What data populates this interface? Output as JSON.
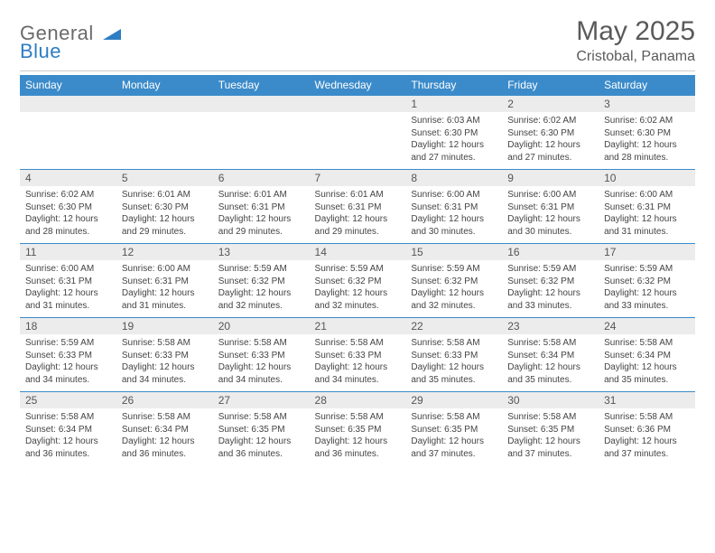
{
  "brand": {
    "line1": "General",
    "line2": "Blue"
  },
  "title": "May 2025",
  "location": "Cristobal, Panama",
  "colors": {
    "header_bg": "#3b8bca",
    "header_text": "#ffffff",
    "strip_bg": "#ececec",
    "border": "#3b8bca",
    "logo_gray": "#6a6a6a",
    "logo_blue": "#2d7dc4"
  },
  "dayHeaders": [
    "Sunday",
    "Monday",
    "Tuesday",
    "Wednesday",
    "Thursday",
    "Friday",
    "Saturday"
  ],
  "weeks": [
    [
      {
        "n": "",
        "sunrise": "",
        "sunset": "",
        "daylight": ""
      },
      {
        "n": "",
        "sunrise": "",
        "sunset": "",
        "daylight": ""
      },
      {
        "n": "",
        "sunrise": "",
        "sunset": "",
        "daylight": ""
      },
      {
        "n": "",
        "sunrise": "",
        "sunset": "",
        "daylight": ""
      },
      {
        "n": "1",
        "sunrise": "6:03 AM",
        "sunset": "6:30 PM",
        "daylight": "12 hours and 27 minutes."
      },
      {
        "n": "2",
        "sunrise": "6:02 AM",
        "sunset": "6:30 PM",
        "daylight": "12 hours and 27 minutes."
      },
      {
        "n": "3",
        "sunrise": "6:02 AM",
        "sunset": "6:30 PM",
        "daylight": "12 hours and 28 minutes."
      }
    ],
    [
      {
        "n": "4",
        "sunrise": "6:02 AM",
        "sunset": "6:30 PM",
        "daylight": "12 hours and 28 minutes."
      },
      {
        "n": "5",
        "sunrise": "6:01 AM",
        "sunset": "6:30 PM",
        "daylight": "12 hours and 29 minutes."
      },
      {
        "n": "6",
        "sunrise": "6:01 AM",
        "sunset": "6:31 PM",
        "daylight": "12 hours and 29 minutes."
      },
      {
        "n": "7",
        "sunrise": "6:01 AM",
        "sunset": "6:31 PM",
        "daylight": "12 hours and 29 minutes."
      },
      {
        "n": "8",
        "sunrise": "6:00 AM",
        "sunset": "6:31 PM",
        "daylight": "12 hours and 30 minutes."
      },
      {
        "n": "9",
        "sunrise": "6:00 AM",
        "sunset": "6:31 PM",
        "daylight": "12 hours and 30 minutes."
      },
      {
        "n": "10",
        "sunrise": "6:00 AM",
        "sunset": "6:31 PM",
        "daylight": "12 hours and 31 minutes."
      }
    ],
    [
      {
        "n": "11",
        "sunrise": "6:00 AM",
        "sunset": "6:31 PM",
        "daylight": "12 hours and 31 minutes."
      },
      {
        "n": "12",
        "sunrise": "6:00 AM",
        "sunset": "6:31 PM",
        "daylight": "12 hours and 31 minutes."
      },
      {
        "n": "13",
        "sunrise": "5:59 AM",
        "sunset": "6:32 PM",
        "daylight": "12 hours and 32 minutes."
      },
      {
        "n": "14",
        "sunrise": "5:59 AM",
        "sunset": "6:32 PM",
        "daylight": "12 hours and 32 minutes."
      },
      {
        "n": "15",
        "sunrise": "5:59 AM",
        "sunset": "6:32 PM",
        "daylight": "12 hours and 32 minutes."
      },
      {
        "n": "16",
        "sunrise": "5:59 AM",
        "sunset": "6:32 PM",
        "daylight": "12 hours and 33 minutes."
      },
      {
        "n": "17",
        "sunrise": "5:59 AM",
        "sunset": "6:32 PM",
        "daylight": "12 hours and 33 minutes."
      }
    ],
    [
      {
        "n": "18",
        "sunrise": "5:59 AM",
        "sunset": "6:33 PM",
        "daylight": "12 hours and 34 minutes."
      },
      {
        "n": "19",
        "sunrise": "5:58 AM",
        "sunset": "6:33 PM",
        "daylight": "12 hours and 34 minutes."
      },
      {
        "n": "20",
        "sunrise": "5:58 AM",
        "sunset": "6:33 PM",
        "daylight": "12 hours and 34 minutes."
      },
      {
        "n": "21",
        "sunrise": "5:58 AM",
        "sunset": "6:33 PM",
        "daylight": "12 hours and 34 minutes."
      },
      {
        "n": "22",
        "sunrise": "5:58 AM",
        "sunset": "6:33 PM",
        "daylight": "12 hours and 35 minutes."
      },
      {
        "n": "23",
        "sunrise": "5:58 AM",
        "sunset": "6:34 PM",
        "daylight": "12 hours and 35 minutes."
      },
      {
        "n": "24",
        "sunrise": "5:58 AM",
        "sunset": "6:34 PM",
        "daylight": "12 hours and 35 minutes."
      }
    ],
    [
      {
        "n": "25",
        "sunrise": "5:58 AM",
        "sunset": "6:34 PM",
        "daylight": "12 hours and 36 minutes."
      },
      {
        "n": "26",
        "sunrise": "5:58 AM",
        "sunset": "6:34 PM",
        "daylight": "12 hours and 36 minutes."
      },
      {
        "n": "27",
        "sunrise": "5:58 AM",
        "sunset": "6:35 PM",
        "daylight": "12 hours and 36 minutes."
      },
      {
        "n": "28",
        "sunrise": "5:58 AM",
        "sunset": "6:35 PM",
        "daylight": "12 hours and 36 minutes."
      },
      {
        "n": "29",
        "sunrise": "5:58 AM",
        "sunset": "6:35 PM",
        "daylight": "12 hours and 37 minutes."
      },
      {
        "n": "30",
        "sunrise": "5:58 AM",
        "sunset": "6:35 PM",
        "daylight": "12 hours and 37 minutes."
      },
      {
        "n": "31",
        "sunrise": "5:58 AM",
        "sunset": "6:36 PM",
        "daylight": "12 hours and 37 minutes."
      }
    ]
  ],
  "labels": {
    "sunrise": "Sunrise:",
    "sunset": "Sunset:",
    "daylight": "Daylight:"
  }
}
